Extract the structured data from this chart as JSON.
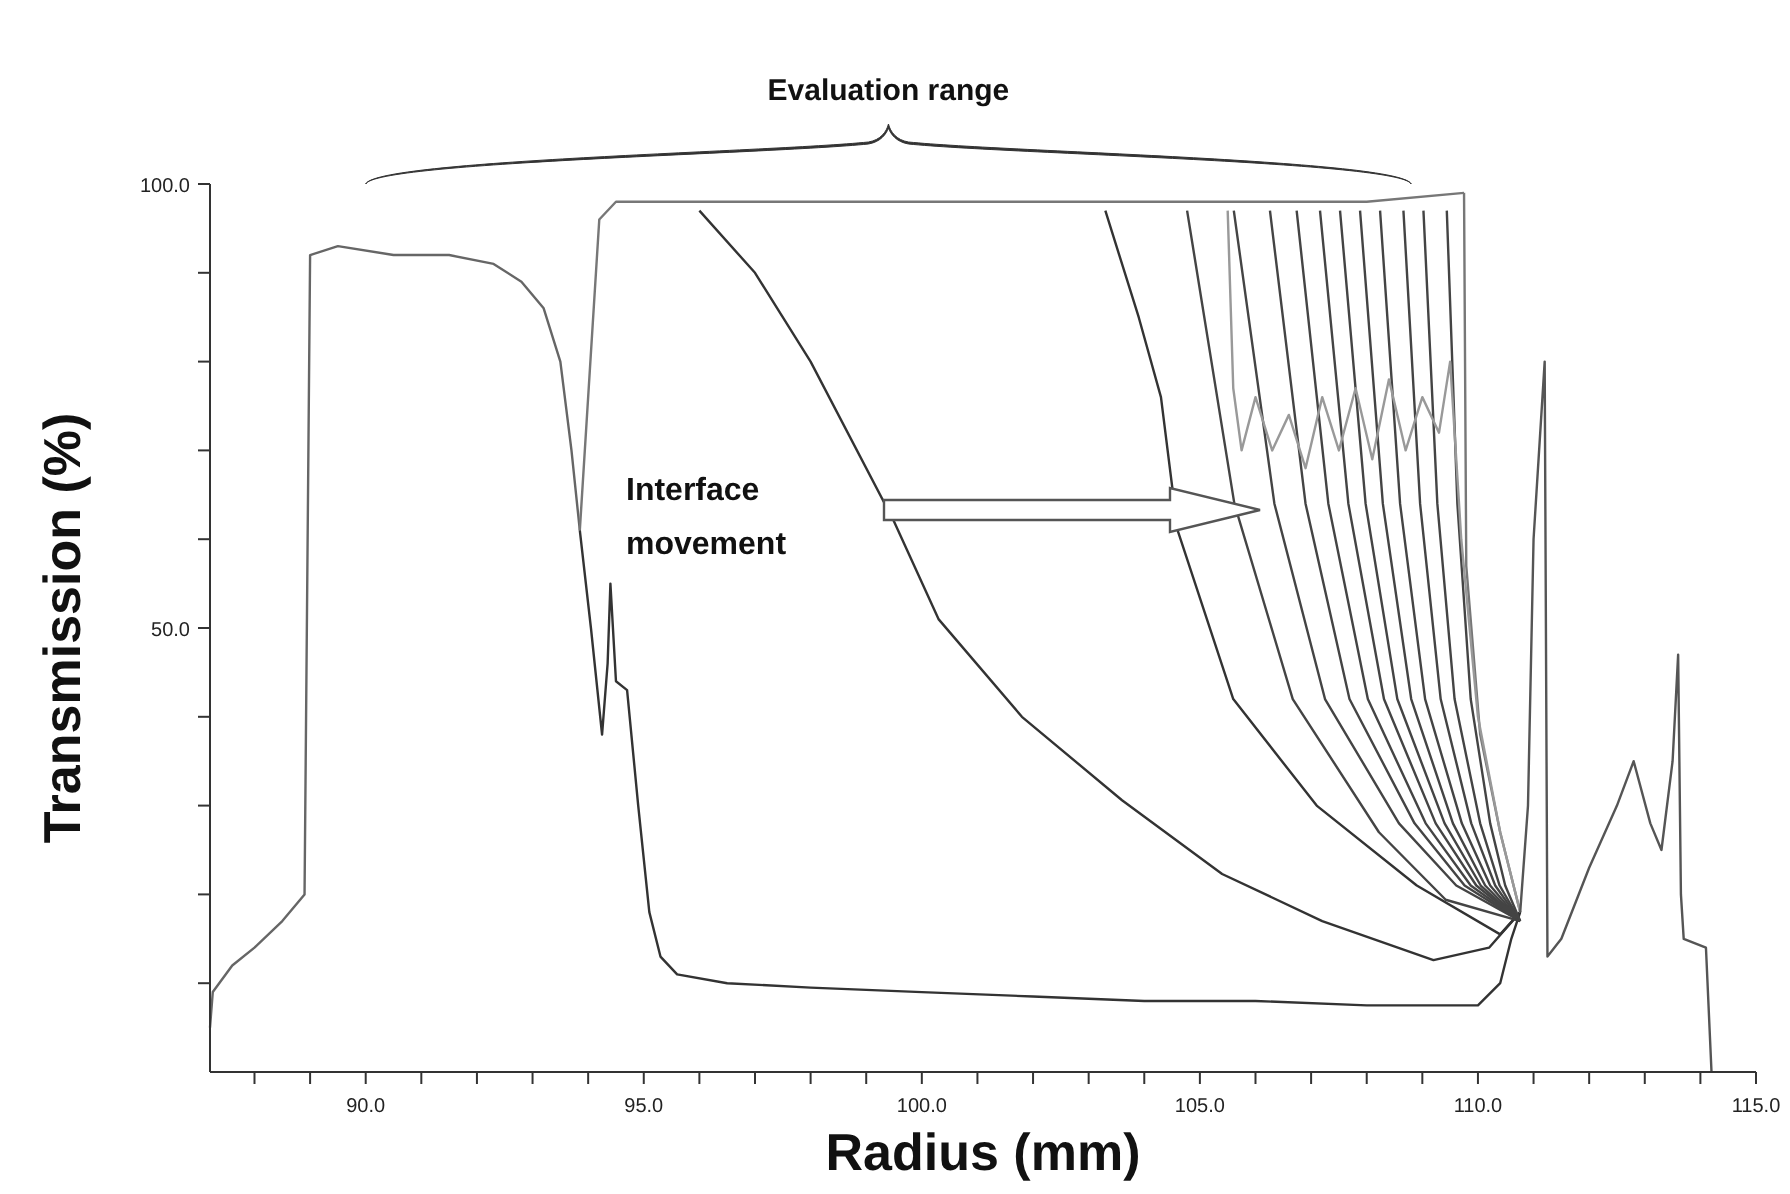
{
  "chart_data": {
    "type": "line",
    "xlabel": "Radius (mm)",
    "ylabel": "Transmission (%)",
    "annotations": [
      "Evaluation range",
      "Interface movement"
    ],
    "xlim": [
      87.2,
      115
    ],
    "ylim": [
      0,
      100
    ],
    "xticks": [
      {
        "value": 88,
        "label": null
      },
      {
        "value": 89,
        "label": null
      },
      {
        "value": 90,
        "label": "90.0"
      },
      {
        "value": 91,
        "label": null
      },
      {
        "value": 92,
        "label": null
      },
      {
        "value": 93,
        "label": null
      },
      {
        "value": 94,
        "label": null
      },
      {
        "value": 95,
        "label": "95.0"
      },
      {
        "value": 96,
        "label": null
      },
      {
        "value": 97,
        "label": null
      },
      {
        "value": 98,
        "label": null
      },
      {
        "value": 99,
        "label": null
      },
      {
        "value": 100,
        "label": "100.0"
      },
      {
        "value": 101,
        "label": null
      },
      {
        "value": 102,
        "label": null
      },
      {
        "value": 103,
        "label": null
      },
      {
        "value": 104,
        "label": null
      },
      {
        "value": 105,
        "label": "105.0"
      },
      {
        "value": 106,
        "label": null
      },
      {
        "value": 107,
        "label": null
      },
      {
        "value": 108,
        "label": null
      },
      {
        "value": 109,
        "label": null
      },
      {
        "value": 110,
        "label": "110.0"
      },
      {
        "value": 111,
        "label": null
      },
      {
        "value": 112,
        "label": null
      },
      {
        "value": 113,
        "label": null
      },
      {
        "value": 114,
        "label": null
      },
      {
        "value": 115,
        "label": "115.0"
      }
    ],
    "yticks": [
      {
        "value": 10,
        "label": null
      },
      {
        "value": 20,
        "label": null
      },
      {
        "value": 30,
        "label": null
      },
      {
        "value": 40,
        "label": null
      },
      {
        "value": 50,
        "label": "50.0"
      },
      {
        "value": 60,
        "label": null
      },
      {
        "value": 70,
        "label": null
      },
      {
        "value": 80,
        "label": null
      },
      {
        "value": 90,
        "label": null
      },
      {
        "value": 100,
        "label": "100.0"
      }
    ],
    "grid": false,
    "marker": "none",
    "line_style": "solid",
    "series": [
      {
        "color": "#666666",
        "x": [
          87.2,
          87.25,
          87.6,
          88,
          88.5,
          88.9,
          89.0,
          89.5,
          90.5,
          91.5,
          92.3,
          92.8,
          93.2,
          93.5,
          93.7,
          93.85
        ],
        "values": [
          5,
          9,
          12,
          14,
          17,
          20,
          92,
          93,
          92,
          92,
          91,
          89,
          86,
          80,
          70,
          61
        ]
      },
      {
        "color": "#777777",
        "x": [
          93.85,
          94.2,
          94.5,
          96,
          98,
          100,
          102,
          104,
          106,
          108,
          109.75
        ],
        "values": [
          61,
          96,
          98,
          98,
          98,
          98,
          98,
          98,
          98,
          98,
          99
        ]
      },
      {
        "color": "#333333",
        "x": [
          93.85,
          94.05,
          94.25,
          94.35,
          94.4,
          94.5,
          94.7,
          94.9,
          95.1,
          95.3,
          95.6,
          96.5,
          98,
          100,
          102,
          104,
          106,
          108,
          110,
          110.4,
          110.6,
          110.76
        ],
        "values": [
          61,
          50,
          38,
          46,
          55,
          44,
          43,
          30,
          18,
          13,
          11,
          10,
          9.5,
          9,
          8.5,
          8,
          8,
          7.5,
          7.5,
          10,
          15,
          18
        ]
      },
      {
        "color": "#333333",
        "x": [
          96.0,
          97,
          98,
          99.5,
          100.3,
          101.8,
          103.6,
          105.4,
          107.2,
          109.2,
          110.2,
          110.76
        ],
        "values": [
          97,
          90,
          80,
          62,
          51,
          40,
          30.6,
          22.3,
          17,
          12.6,
          14,
          18
        ]
      },
      {
        "color": "#333333",
        "x": [
          103.3,
          103.9,
          104.3,
          104.6,
          105.6,
          107.1,
          108.9,
          110.4,
          110.76
        ],
        "values": [
          97,
          85,
          76,
          61,
          42,
          30,
          21,
          15.5,
          18
        ]
      },
      {
        "color": "#444444",
        "x": [
          104.77,
          105.62,
          106.67,
          108.22,
          109.42,
          110.76
        ],
        "values": [
          97,
          64,
          42,
          27,
          19.4,
          17
        ]
      },
      {
        "color": "#444444",
        "x": [
          105.61,
          106.34,
          107.25,
          108.58,
          109.61,
          110.76
        ],
        "values": [
          97,
          64,
          42,
          28,
          21,
          17
        ]
      },
      {
        "color": "#444444",
        "x": [
          106.26,
          106.9,
          107.69,
          108.86,
          109.76,
          110.76
        ],
        "values": [
          97,
          64,
          42,
          28,
          21,
          17
        ]
      },
      {
        "color": "#444444",
        "x": [
          106.74,
          107.31,
          108.02,
          109.06,
          109.87,
          110.76
        ],
        "values": [
          97,
          64,
          42,
          28,
          21,
          17
        ]
      },
      {
        "color": "#444444",
        "x": [
          107.16,
          107.67,
          108.31,
          109.24,
          109.97,
          110.76
        ],
        "values": [
          97,
          64,
          42,
          28,
          21,
          17
        ]
      },
      {
        "color": "#444444",
        "x": [
          107.52,
          107.98,
          108.55,
          109.4,
          110.05,
          110.76
        ],
        "values": [
          97,
          64,
          42,
          28,
          21,
          17
        ]
      },
      {
        "color": "#444444",
        "x": [
          107.88,
          108.29,
          108.8,
          109.55,
          110.13,
          110.76
        ],
        "values": [
          97,
          64,
          42,
          28,
          21,
          17
        ]
      },
      {
        "color": "#444444",
        "x": [
          108.24,
          108.6,
          109.05,
          109.71,
          110.22,
          110.76
        ],
        "values": [
          97,
          64,
          42,
          28,
          21,
          17
        ]
      },
      {
        "color": "#444444",
        "x": [
          108.66,
          108.96,
          109.33,
          109.88,
          110.31,
          110.76
        ],
        "values": [
          97,
          64,
          42,
          28,
          21,
          17
        ]
      },
      {
        "color": "#444444",
        "x": [
          109.02,
          109.27,
          109.58,
          110.04,
          110.39,
          110.76
        ],
        "values": [
          97,
          64,
          42,
          28,
          21,
          17
        ]
      },
      {
        "color": "#444444",
        "x": [
          109.44,
          109.63,
          109.87,
          110.22,
          110.49,
          110.76
        ],
        "values": [
          97,
          64,
          42,
          28,
          21,
          17
        ]
      },
      {
        "color": "#777777",
        "x": [
          109.75,
          109.79,
          110.04,
          110.4,
          110.76
        ],
        "values": [
          99,
          57,
          38,
          27,
          18
        ]
      },
      {
        "color": "#999999",
        "x": [
          105.5,
          105.6,
          105.75,
          106,
          106.3,
          106.6,
          106.9,
          107.2,
          107.5,
          107.8,
          108.1,
          108.4,
          108.7,
          109.0,
          109.3,
          109.5,
          109.7,
          110.0,
          110.4,
          110.76
        ],
        "values": [
          97,
          77,
          70,
          76,
          70,
          74,
          68,
          76,
          70,
          77,
          69,
          78,
          70,
          76,
          72,
          80,
          60,
          40,
          27,
          18
        ]
      },
      {
        "color": "#555555",
        "x": [
          110.76,
          110.9,
          111.0,
          111.1,
          111.2,
          111.25,
          111.5,
          112,
          112.5,
          112.8,
          113.1,
          113.3,
          113.5,
          113.6,
          113.65,
          113.7,
          114.1,
          114.2
        ],
        "values": [
          18,
          30,
          60,
          70,
          80,
          13,
          15,
          23,
          30,
          35,
          28,
          25,
          35,
          47,
          20,
          15,
          14,
          0
        ]
      }
    ]
  }
}
